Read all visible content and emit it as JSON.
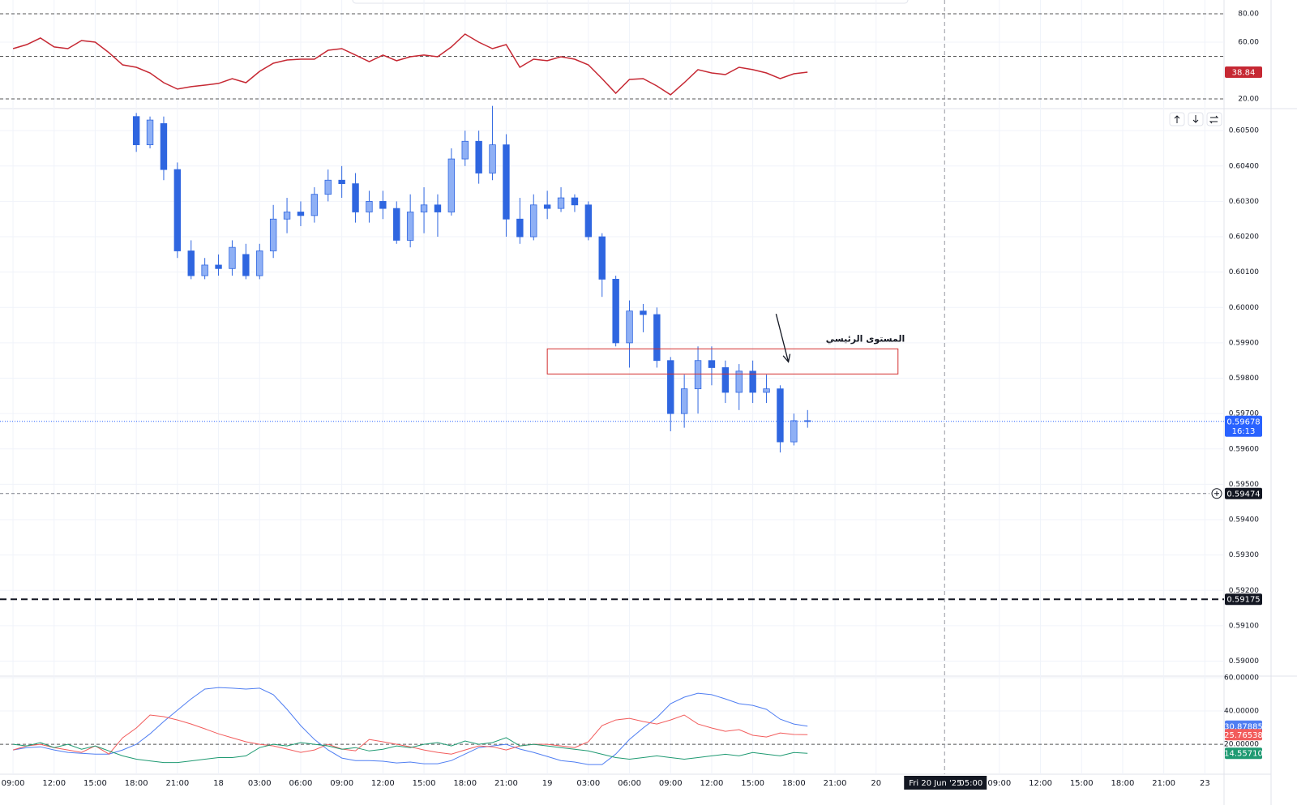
{
  "chart_data": [
    {
      "type": "line",
      "xlim": [
        -0.95,
        88.4
      ],
      "ylim": [
        13.7,
        89.7
      ],
      "yticks": [
        {
          "value": 80,
          "label": "80.00"
        },
        {
          "value": 60,
          "label": "60.00"
        },
        {
          "value": 20,
          "label": "20.00"
        }
      ],
      "bands": [
        80,
        50,
        20
      ],
      "x": [
        0,
        1,
        2,
        3,
        4,
        5,
        6,
        7,
        8,
        9,
        10,
        11,
        12,
        13,
        14,
        15,
        16,
        17,
        18,
        19,
        20,
        21,
        22,
        23,
        24,
        25,
        26,
        27,
        28,
        29,
        30,
        31,
        32,
        33,
        34,
        35,
        36,
        37,
        38,
        39,
        40,
        41,
        42,
        43,
        44,
        45,
        46,
        47,
        48,
        49,
        50,
        51,
        52,
        53,
        54,
        55,
        56,
        57,
        58
      ],
      "series": [
        {
          "color": "#c62833",
          "values": [
            55.4,
            58.3,
            62.9,
            56.6,
            55.4,
            61.1,
            60,
            52.6,
            44,
            42.3,
            38.3,
            31.4,
            26.9,
            28.6,
            29.7,
            30.9,
            34.3,
            31.4,
            39.4,
            45.1,
            47.4,
            48,
            48,
            54.3,
            55.4,
            50.9,
            46.3,
            50.9,
            46.9,
            49.7,
            50.9,
            49.7,
            56.6,
            65.7,
            60,
            55.4,
            58.3,
            42.3,
            48,
            46.9,
            49.7,
            48,
            44,
            34.3,
            24,
            33.7,
            34.3,
            29.1,
            22.9,
            31.4,
            40.6,
            38.3,
            37.1,
            42.3,
            40.6,
            38.3,
            34.3,
            37.7,
            38.84
          ]
        }
      ]
    },
    {
      "type": "candlestick",
      "xlim": [
        -0.95,
        88.4
      ],
      "ylim": [
        0.5896,
        0.6056
      ],
      "yticks": [
        {
          "value": 0.605,
          "label": "0.60500"
        },
        {
          "value": 0.604,
          "label": "0.60400"
        },
        {
          "value": 0.603,
          "label": "0.60300"
        },
        {
          "value": 0.602,
          "label": "0.60200"
        },
        {
          "value": 0.601,
          "label": "0.60100"
        },
        {
          "value": 0.6,
          "label": "0.60000"
        },
        {
          "value": 0.599,
          "label": "0.59900"
        },
        {
          "value": 0.598,
          "label": "0.59800"
        },
        {
          "value": 0.597,
          "label": "0.59700"
        },
        {
          "value": 0.596,
          "label": "0.59600"
        },
        {
          "value": 0.595,
          "label": "0.59500"
        },
        {
          "value": 0.594,
          "label": "0.59400"
        },
        {
          "value": 0.593,
          "label": "0.59300"
        },
        {
          "value": 0.592,
          "label": "0.59200"
        },
        {
          "value": 0.591,
          "label": "0.59100"
        },
        {
          "value": 0.59,
          "label": "0.59000"
        }
      ],
      "up_color": "#8fb0f5",
      "down_color": "#2f66e0",
      "x": [
        9,
        10,
        11,
        12,
        13,
        14,
        15,
        16,
        17,
        18,
        19,
        20,
        21,
        22,
        23,
        24,
        25,
        26,
        27,
        28,
        29,
        30,
        31,
        32,
        33,
        34,
        35,
        36,
        37,
        38,
        39,
        40,
        41,
        42,
        43,
        44,
        45,
        46,
        47,
        48,
        49,
        50,
        51,
        52,
        53,
        54,
        55,
        56,
        57,
        58
      ],
      "open": [
        0.6054,
        0.6046,
        0.6052,
        0.6039,
        0.6016,
        0.6009,
        0.6012,
        0.6011,
        0.6015,
        0.6009,
        0.6016,
        0.6025,
        0.6027,
        0.6026,
        0.6032,
        0.6036,
        0.6035,
        0.6027,
        0.603,
        0.6028,
        0.6019,
        0.6027,
        0.6029,
        0.6027,
        0.6042,
        0.6047,
        0.6038,
        0.6046,
        0.6025,
        0.602,
        0.6029,
        0.6028,
        0.6031,
        0.6029,
        0.602,
        0.6008,
        0.599,
        0.5999,
        0.5998,
        0.5985,
        0.597,
        0.5977,
        0.5985,
        0.5983,
        0.5976,
        0.5982,
        0.5976,
        0.5977,
        0.5962,
        0.5968
      ],
      "high": [
        0.6055,
        0.6054,
        0.6054,
        0.6041,
        0.6019,
        0.6014,
        0.6015,
        0.6019,
        0.6018,
        0.6018,
        0.6029,
        0.6031,
        0.603,
        0.6034,
        0.6039,
        0.604,
        0.6038,
        0.6033,
        0.6033,
        0.603,
        0.6032,
        0.6034,
        0.6032,
        0.6045,
        0.605,
        0.605,
        0.6057,
        0.6049,
        0.6031,
        0.6032,
        0.6033,
        0.6034,
        0.6032,
        0.603,
        0.6021,
        0.6009,
        0.6002,
        0.6001,
        0.6,
        0.5986,
        0.5981,
        0.5989,
        0.5989,
        0.5985,
        0.5984,
        0.5985,
        0.5981,
        0.5978,
        0.597,
        0.5971
      ],
      "low": [
        0.6044,
        0.6045,
        0.6036,
        0.6014,
        0.6008,
        0.6008,
        0.6009,
        0.6009,
        0.6008,
        0.6008,
        0.6014,
        0.6021,
        0.6023,
        0.6024,
        0.603,
        0.6031,
        0.6024,
        0.6024,
        0.6025,
        0.6018,
        0.6017,
        0.6021,
        0.602,
        0.6026,
        0.604,
        0.6035,
        0.6036,
        0.602,
        0.6018,
        0.6019,
        0.6025,
        0.6027,
        0.6027,
        0.6019,
        0.6003,
        0.5989,
        0.5983,
        0.5993,
        0.5983,
        0.5965,
        0.5966,
        0.597,
        0.5978,
        0.5973,
        0.5971,
        0.5973,
        0.5973,
        0.5959,
        0.5961,
        0.5966
      ],
      "close": [
        0.6046,
        0.6053,
        0.6039,
        0.6016,
        0.6009,
        0.6012,
        0.6011,
        0.6017,
        0.6009,
        0.6016,
        0.6025,
        0.6027,
        0.6026,
        0.6032,
        0.6036,
        0.6035,
        0.6027,
        0.603,
        0.6028,
        0.6019,
        0.6027,
        0.6029,
        0.6027,
        0.6042,
        0.6047,
        0.6038,
        0.6046,
        0.6025,
        0.602,
        0.6029,
        0.6028,
        0.6031,
        0.6029,
        0.602,
        0.6008,
        0.599,
        0.5999,
        0.5998,
        0.5985,
        0.597,
        0.5977,
        0.5985,
        0.5983,
        0.5976,
        0.5982,
        0.5976,
        0.5977,
        0.5962,
        0.5968,
        0.59678
      ],
      "countdown": "16:13",
      "levels": [
        {
          "value": 0.59474,
          "style": "thin"
        },
        {
          "value": 0.59175,
          "style": "thick"
        }
      ],
      "zone": {
        "x": [
          39,
          64.6
        ],
        "y": [
          0.59812,
          0.59883
        ],
        "color": "#d32f2f"
      },
      "arrow": {
        "x": [
          55.7,
          56.6
        ],
        "y": [
          0.59982,
          0.59846
        ]
      },
      "annotation": {
        "text": "المستوى الرئيسي",
        "x": 65.1,
        "y": 0.5991
      }
    },
    {
      "type": "line",
      "xlim": [
        -0.95,
        88.4
      ],
      "ylim": [
        2,
        60.5
      ],
      "yticks": [
        {
          "value": 60,
          "label": "60.00000"
        },
        {
          "value": 40,
          "label": "40.00000"
        },
        {
          "value": 20,
          "label": "20.00000"
        }
      ],
      "bands": [
        20
      ],
      "xticks": [
        {
          "value": 0,
          "label": "09:00"
        },
        {
          "value": 3,
          "label": "12:00"
        },
        {
          "value": 6,
          "label": "15:00"
        },
        {
          "value": 9,
          "label": "18:00"
        },
        {
          "value": 12,
          "label": "21:00"
        },
        {
          "value": 15,
          "label": "18"
        },
        {
          "value": 18,
          "label": "03:00"
        },
        {
          "value": 21,
          "label": "06:00"
        },
        {
          "value": 24,
          "label": "09:00"
        },
        {
          "value": 27,
          "label": "12:00"
        },
        {
          "value": 30,
          "label": "15:00"
        },
        {
          "value": 33,
          "label": "18:00"
        },
        {
          "value": 36,
          "label": "21:00"
        },
        {
          "value": 39,
          "label": "19"
        },
        {
          "value": 42,
          "label": "03:00"
        },
        {
          "value": 45,
          "label": "06:00"
        },
        {
          "value": 48,
          "label": "09:00"
        },
        {
          "value": 51,
          "label": "12:00"
        },
        {
          "value": 54,
          "label": "15:00"
        },
        {
          "value": 57,
          "label": "18:00"
        },
        {
          "value": 60,
          "label": "21:00"
        },
        {
          "value": 63,
          "label": "20"
        },
        {
          "value": 72,
          "label": "09:00"
        },
        {
          "value": 75,
          "label": "12:00"
        },
        {
          "value": 78,
          "label": "15:00"
        },
        {
          "value": 81,
          "label": "18:00"
        },
        {
          "value": 84,
          "label": "21:00"
        },
        {
          "value": 87,
          "label": "23"
        }
      ],
      "crosshair": {
        "x": 68,
        "label": "Fri 20 Jun '25",
        "time": "05:00"
      },
      "x": [
        0,
        1,
        2,
        3,
        4,
        5,
        6,
        7,
        8,
        9,
        10,
        11,
        12,
        13,
        14,
        15,
        16,
        17,
        18,
        19,
        20,
        21,
        22,
        23,
        24,
        25,
        26,
        27,
        28,
        29,
        30,
        31,
        32,
        33,
        34,
        35,
        36,
        37,
        38,
        39,
        40,
        41,
        42,
        43,
        44,
        45,
        46,
        47,
        48,
        49,
        50,
        51,
        52,
        53,
        54,
        55,
        56,
        57,
        58
      ],
      "series": [
        {
          "color": "#4f7ef2",
          "last_value_label": "30.87885",
          "values": [
            16.6,
            18.0,
            18.5,
            16.6,
            15.1,
            14.6,
            14.1,
            14.1,
            16.6,
            20,
            26.3,
            33.7,
            40.5,
            47.3,
            53.2,
            54.1,
            53.7,
            53.2,
            53.7,
            49.8,
            41,
            31.2,
            22.9,
            16.6,
            11.7,
            10.2,
            10.2,
            9.8,
            8.8,
            9.3,
            8.3,
            8.3,
            10.2,
            14.1,
            18,
            19,
            20,
            17.1,
            15.1,
            12.7,
            10.2,
            9.3,
            7.8,
            7.8,
            14.1,
            22.9,
            29.8,
            36.1,
            44.4,
            48.3,
            50.7,
            49.8,
            47.3,
            44.4,
            43.4,
            41,
            35.1,
            32.2,
            30.87885
          ]
        },
        {
          "color": "#f25c5c",
          "last_value_label": "25.76538",
          "values": [
            16.6,
            19,
            20,
            18,
            16.6,
            15.1,
            19,
            14.1,
            23.9,
            29.8,
            37.6,
            36.6,
            34.6,
            32.2,
            29.3,
            26.3,
            23.9,
            21.5,
            20,
            19,
            17.1,
            15.1,
            16.6,
            20,
            17.1,
            16.1,
            22.9,
            21.5,
            20,
            18.5,
            16.6,
            15.1,
            14.1,
            16.6,
            19,
            18.5,
            16.6,
            19,
            20,
            20,
            19,
            18,
            21.5,
            31.2,
            34.6,
            35.6,
            33.7,
            32.2,
            34.6,
            37.6,
            32.2,
            29.8,
            27.8,
            28.8,
            25.4,
            24.4,
            26.8,
            25.9,
            25.76538
          ]
        },
        {
          "color": "#1f9a72",
          "last_value_label": "14.55710",
          "values": [
            20,
            19,
            21,
            18,
            20,
            17,
            19,
            16,
            13,
            11,
            10,
            9,
            9,
            10,
            11,
            12,
            12,
            13,
            18,
            20,
            19,
            21,
            20,
            19,
            17,
            18,
            16,
            17,
            19,
            18,
            20,
            21,
            19,
            22,
            20,
            21,
            24,
            19,
            20,
            19,
            18,
            17,
            16,
            14,
            12,
            11,
            12,
            13,
            12,
            11,
            12,
            13,
            14,
            13,
            15,
            14,
            13,
            15,
            14.5571
          ]
        }
      ]
    }
  ]
}
